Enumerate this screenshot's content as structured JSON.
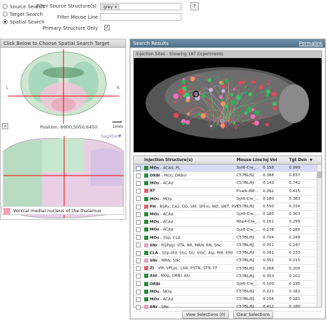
{
  "search_modes": [
    {
      "label": "Source Search",
      "selected": false
    },
    {
      "label": "Target Search",
      "selected": false
    },
    {
      "label": "Spatial Search",
      "selected": true
    }
  ],
  "filters": {
    "source_label": "Filter Source Structure(s)",
    "source_tag": "grey",
    "mouse_line_label": "Filter Mouse Line",
    "primary_label": "Primary Structure Only",
    "help": "?"
  },
  "left_panel": {
    "title": "Click Below to Choose Spatial Search Target",
    "position": "Position: 6900,5050,6450",
    "scale": "1mm",
    "sagittal": "Sagittal",
    "legend": "Ventral medial nucleus of the thalamus",
    "L": "L",
    "R": "R"
  },
  "right_panel": {
    "title": "Search Results",
    "permalink": "Permalink",
    "injection_bar": "Injection Sites - Showing 187 Experiments"
  },
  "table": {
    "headers": [
      "Injection Structure(s)",
      "Mouse Line",
      "Inj Vol",
      "Tgt Den"
    ],
    "rows": [
      {
        "swatch": "#2a8a3a",
        "acr": "MOs",
        "rest": " - ACA4, PL",
        "line": "Syt6-Cre_...",
        "vol": "0.158",
        "den": "0.999",
        "sel": true
      },
      {
        "swatch": "#2a8a3a",
        "acr": "ORBl",
        "rest": " - MOs, ORBvl",
        "line": "C57BL/6J",
        "vol": "0.388",
        "den": "0.837"
      },
      {
        "swatch": "#2a8a3a",
        "acr": "MOs",
        "rest": " - ACAd",
        "line": "C57BL/6J",
        "vol": "0.143",
        "den": "0.742"
      },
      {
        "swatch": "#e06070",
        "acr": "RT",
        "rest": "",
        "line": "Pvalb-IRE...",
        "vol": "0.092",
        "den": "0.415"
      },
      {
        "swatch": "#2a8a3a",
        "acr": "MOs",
        "rest": " - MOp",
        "line": "Syt6-Cre_...",
        "vol": "0.180",
        "den": "0.383"
      },
      {
        "swatch": "#e06070",
        "acr": "PH",
        "rest": " - RSPv, CA1, DG, VM, SPFm, MD, SMT, PVT",
        "line": "C57BL/6J",
        "vol": "0.590",
        "den": "0.334"
      },
      {
        "swatch": "#2a8a3a",
        "acr": "MOs",
        "rest": " - ACAd",
        "line": "Syt6-Cre_...",
        "vol": "0.180",
        "den": "0.303"
      },
      {
        "swatch": "#2a8a3a",
        "acr": "MOs",
        "rest": " - ACAd",
        "line": "Rbp4-Cre_...",
        "vol": "0.161",
        "den": "0.299"
      },
      {
        "swatch": "#2a8a3a",
        "acr": "MOs",
        "rest": " - ACAd",
        "line": "Syt6-Cre_...",
        "vol": "0.278",
        "den": "0.285"
      },
      {
        "swatch": "#2a8a3a",
        "acr": "MOs",
        "rest": " - SSp, CLA",
        "line": "C57BL/6J",
        "vol": "0.704",
        "den": "0.249"
      },
      {
        "swatch": "#e0a0c0",
        "acr": "SNr",
        "rest": " - RSPagl, VTA, RR, MRN, RN, SNc",
        "line": "C57BL/6J",
        "vol": "0.351",
        "den": "0.247"
      },
      {
        "swatch": "#2a8a3a",
        "acr": "CLA",
        "rest": " - SSp-bfd, SSs, GU, VISC, AIp, PIR, EPd",
        "line": "C57BL/6J",
        "vol": "0.281",
        "den": "0.233"
      },
      {
        "swatch": "#e0a0c0",
        "acr": "SNr",
        "rest": " - MRN, SNc",
        "line": "C57BL/6J",
        "vol": "0.351",
        "den": "0.215"
      },
      {
        "swatch": "#e06070",
        "acr": "ZI",
        "rest": " - VM, VPLpc, LHA, PSTN, STN, FF",
        "line": "C57BL/6J",
        "vol": "0.268",
        "den": "0.209"
      },
      {
        "swatch": "#2a8a3a",
        "acr": "AId",
        "rest": " - MOp, ORBl, AIv",
        "line": "C57BL/6J",
        "vol": "0.353",
        "den": "0.202"
      },
      {
        "swatch": "#2a8a3a",
        "acr": "ORBl",
        "rest": "",
        "line": "Syt6-Cre_...",
        "vol": "0.100",
        "den": "0.195"
      },
      {
        "swatch": "#2a8a3a",
        "acr": "MOs",
        "rest": " - MOp",
        "line": "C57BL/6J",
        "vol": "0.221",
        "den": "0.181"
      },
      {
        "swatch": "#2a8a3a",
        "acr": "MOs",
        "rest": " - ACAd",
        "line": "C57BL/6J",
        "vol": "0.156",
        "den": "0.181"
      },
      {
        "swatch": "#e0a0c0",
        "acr": "SNr",
        "rest": " - SNc",
        "line": "C57BL/6J",
        "vol": "0.412",
        "den": "0.180"
      }
    ]
  },
  "buttons": {
    "view": "View Selections (0)",
    "clear": "Clear Selections"
  }
}
